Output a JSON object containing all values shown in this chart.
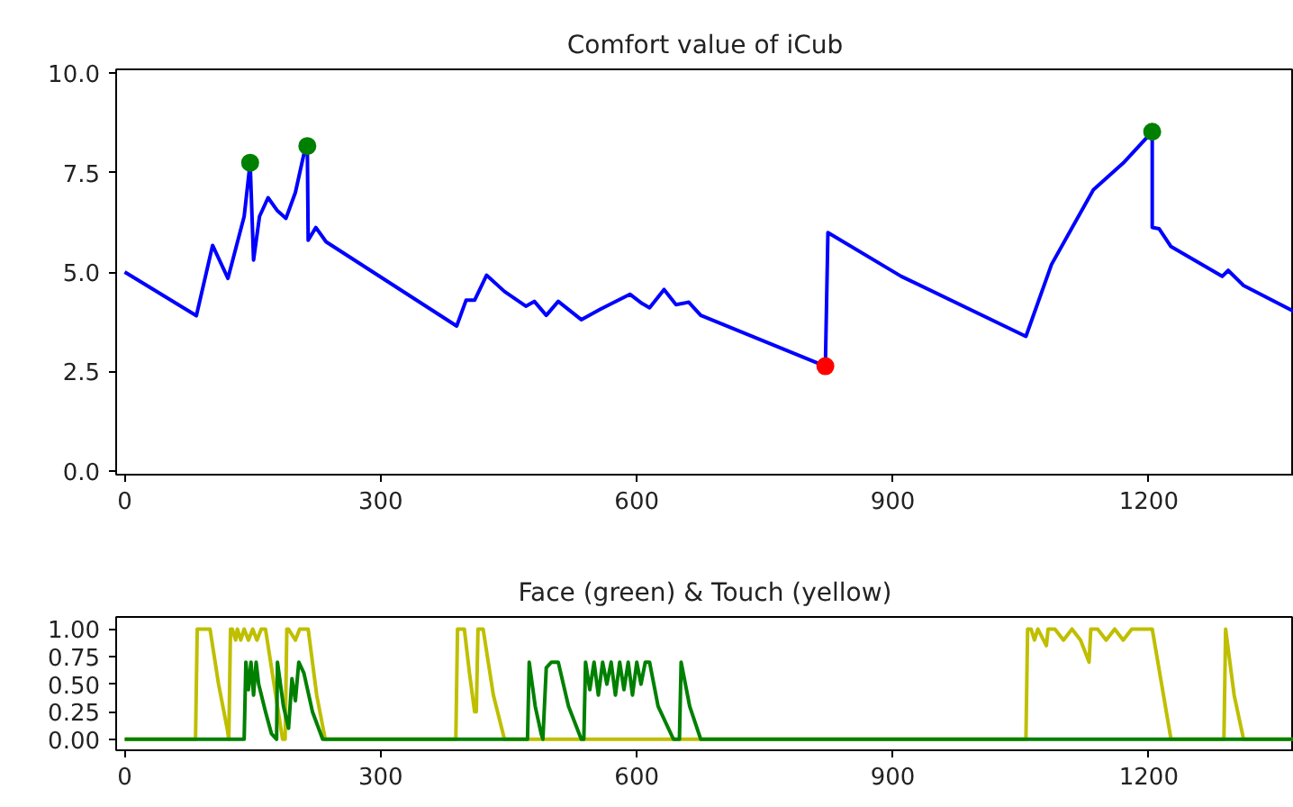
{
  "chart_data": [
    {
      "type": "line",
      "title": "Comfort value of iCub",
      "xlim": [
        -10,
        1370
      ],
      "ylim": [
        -0.1,
        10.1
      ],
      "xticks": [
        0,
        300,
        600,
        900,
        1200
      ],
      "yticks": [
        {
          "value": 0,
          "label": "0.0"
        },
        2.5,
        {
          "value": 5,
          "label": "5.0"
        },
        7.5,
        {
          "value": 10,
          "label": "10.0"
        }
      ],
      "grid": false,
      "line_style": "solid",
      "series": [
        {
          "type": "line",
          "color": "#0000ff",
          "marker": "none",
          "x": [
            0,
            84,
            103,
            121,
            140,
            147,
            151,
            158,
            168,
            179,
            189,
            200,
            210,
            214,
            215,
            224,
            236,
            389,
            400,
            410,
            424,
            445,
            470,
            480,
            494,
            508,
            535,
            557,
            592,
            606,
            615,
            632,
            646,
            661,
            675,
            821,
            824,
            910,
            1056,
            1086,
            1135,
            1170,
            1204,
            1204,
            1212,
            1226,
            1286,
            1293,
            1311,
            1370
          ],
          "values": [
            5.0,
            3.9,
            5.67,
            4.84,
            6.4,
            7.75,
            5.3,
            6.4,
            6.87,
            6.54,
            6.35,
            7.0,
            7.97,
            8.17,
            5.8,
            6.12,
            5.76,
            3.64,
            4.29,
            4.29,
            4.92,
            4.51,
            4.14,
            4.26,
            3.91,
            4.26,
            3.8,
            4.06,
            4.44,
            4.21,
            4.1,
            4.56,
            4.18,
            4.24,
            3.91,
            2.63,
            5.99,
            4.89,
            3.38,
            5.19,
            7.07,
            7.74,
            8.53,
            6.12,
            6.09,
            5.64,
            4.89,
            5.04,
            4.66,
            4.01
          ]
        },
        {
          "type": "scatter",
          "color": "#008000",
          "marker": "circle",
          "x": [
            147,
            214,
            1204
          ],
          "values": [
            7.75,
            8.17,
            8.53
          ]
        },
        {
          "type": "scatter",
          "color": "#ff0000",
          "marker": "circle",
          "x": [
            821
          ],
          "values": [
            2.63
          ]
        }
      ]
    },
    {
      "type": "line",
      "title": "Face (green) & Touch (yellow)",
      "xlim": [
        -10,
        1370
      ],
      "ylim": [
        -0.1,
        1.11
      ],
      "xticks": [
        0,
        300,
        600,
        900,
        1200
      ],
      "yticks": [
        {
          "value": 0,
          "label": "0.00"
        },
        0.25,
        {
          "value": 0.5,
          "label": "0.50"
        },
        0.75,
        {
          "value": 1,
          "label": "1.00"
        }
      ],
      "grid": false,
      "line_style": "solid",
      "marker": "none",
      "series": [
        {
          "color": "#bfbf00",
          "x": [
            0,
            83,
            85,
            100,
            110,
            120,
            122,
            124,
            126,
            130,
            132,
            136,
            140,
            145,
            150,
            155,
            160,
            165,
            175,
            185,
            188,
            190,
            192,
            200,
            205,
            210,
            215,
            225,
            235,
            388,
            390,
            398,
            404,
            410,
            412,
            414,
            420,
            432,
            445,
            1056,
            1058,
            1062,
            1066,
            1070,
            1080,
            1082,
            1090,
            1100,
            1110,
            1120,
            1130,
            1132,
            1140,
            1150,
            1160,
            1170,
            1180,
            1190,
            1204,
            1215,
            1226,
            1288,
            1290,
            1300,
            1311,
            1370
          ],
          "values": [
            0,
            0,
            1,
            1,
            0.5,
            0.1,
            0,
            1,
            1,
            0.9,
            1,
            0.9,
            1,
            0.9,
            1,
            0.9,
            1,
            1,
            0.5,
            0,
            0,
            1,
            1,
            0.9,
            1,
            1,
            1,
            0.4,
            0,
            0,
            1,
            1,
            0.6,
            0.25,
            0.25,
            1,
            1,
            0.4,
            0,
            0,
            1,
            1,
            0.9,
            1,
            0.85,
            1,
            1,
            0.9,
            1,
            0.9,
            0.7,
            1,
            1,
            0.9,
            1,
            0.9,
            1,
            1,
            1,
            0.5,
            0,
            0,
            1,
            0.4,
            0,
            0
          ]
        },
        {
          "color": "#008000",
          "x": [
            0,
            140,
            142,
            145,
            148,
            151,
            154,
            157,
            165,
            172,
            178,
            179,
            186,
            192,
            196,
            200,
            204,
            210,
            220,
            232,
            472,
            474,
            481,
            488,
            490,
            494,
            500,
            508,
            520,
            535,
            538,
            540,
            545,
            550,
            555,
            560,
            565,
            570,
            575,
            580,
            585,
            590,
            595,
            600,
            605,
            610,
            615,
            625,
            643,
            650,
            652,
            662,
            675,
            1370
          ],
          "values": [
            0,
            0,
            0.7,
            0.45,
            0.7,
            0.4,
            0.7,
            0.5,
            0.25,
            0.05,
            0,
            0.7,
            0.3,
            0.1,
            0.55,
            0.35,
            0.7,
            0.6,
            0.25,
            0,
            0,
            0.7,
            0.3,
            0.05,
            0,
            0.65,
            0.7,
            0.7,
            0.3,
            0,
            0,
            0.7,
            0.45,
            0.7,
            0.4,
            0.7,
            0.5,
            0.7,
            0.4,
            0.7,
            0.45,
            0.7,
            0.4,
            0.7,
            0.5,
            0.7,
            0.7,
            0.3,
            0,
            0,
            0.7,
            0.3,
            0,
            0
          ]
        }
      ]
    }
  ]
}
